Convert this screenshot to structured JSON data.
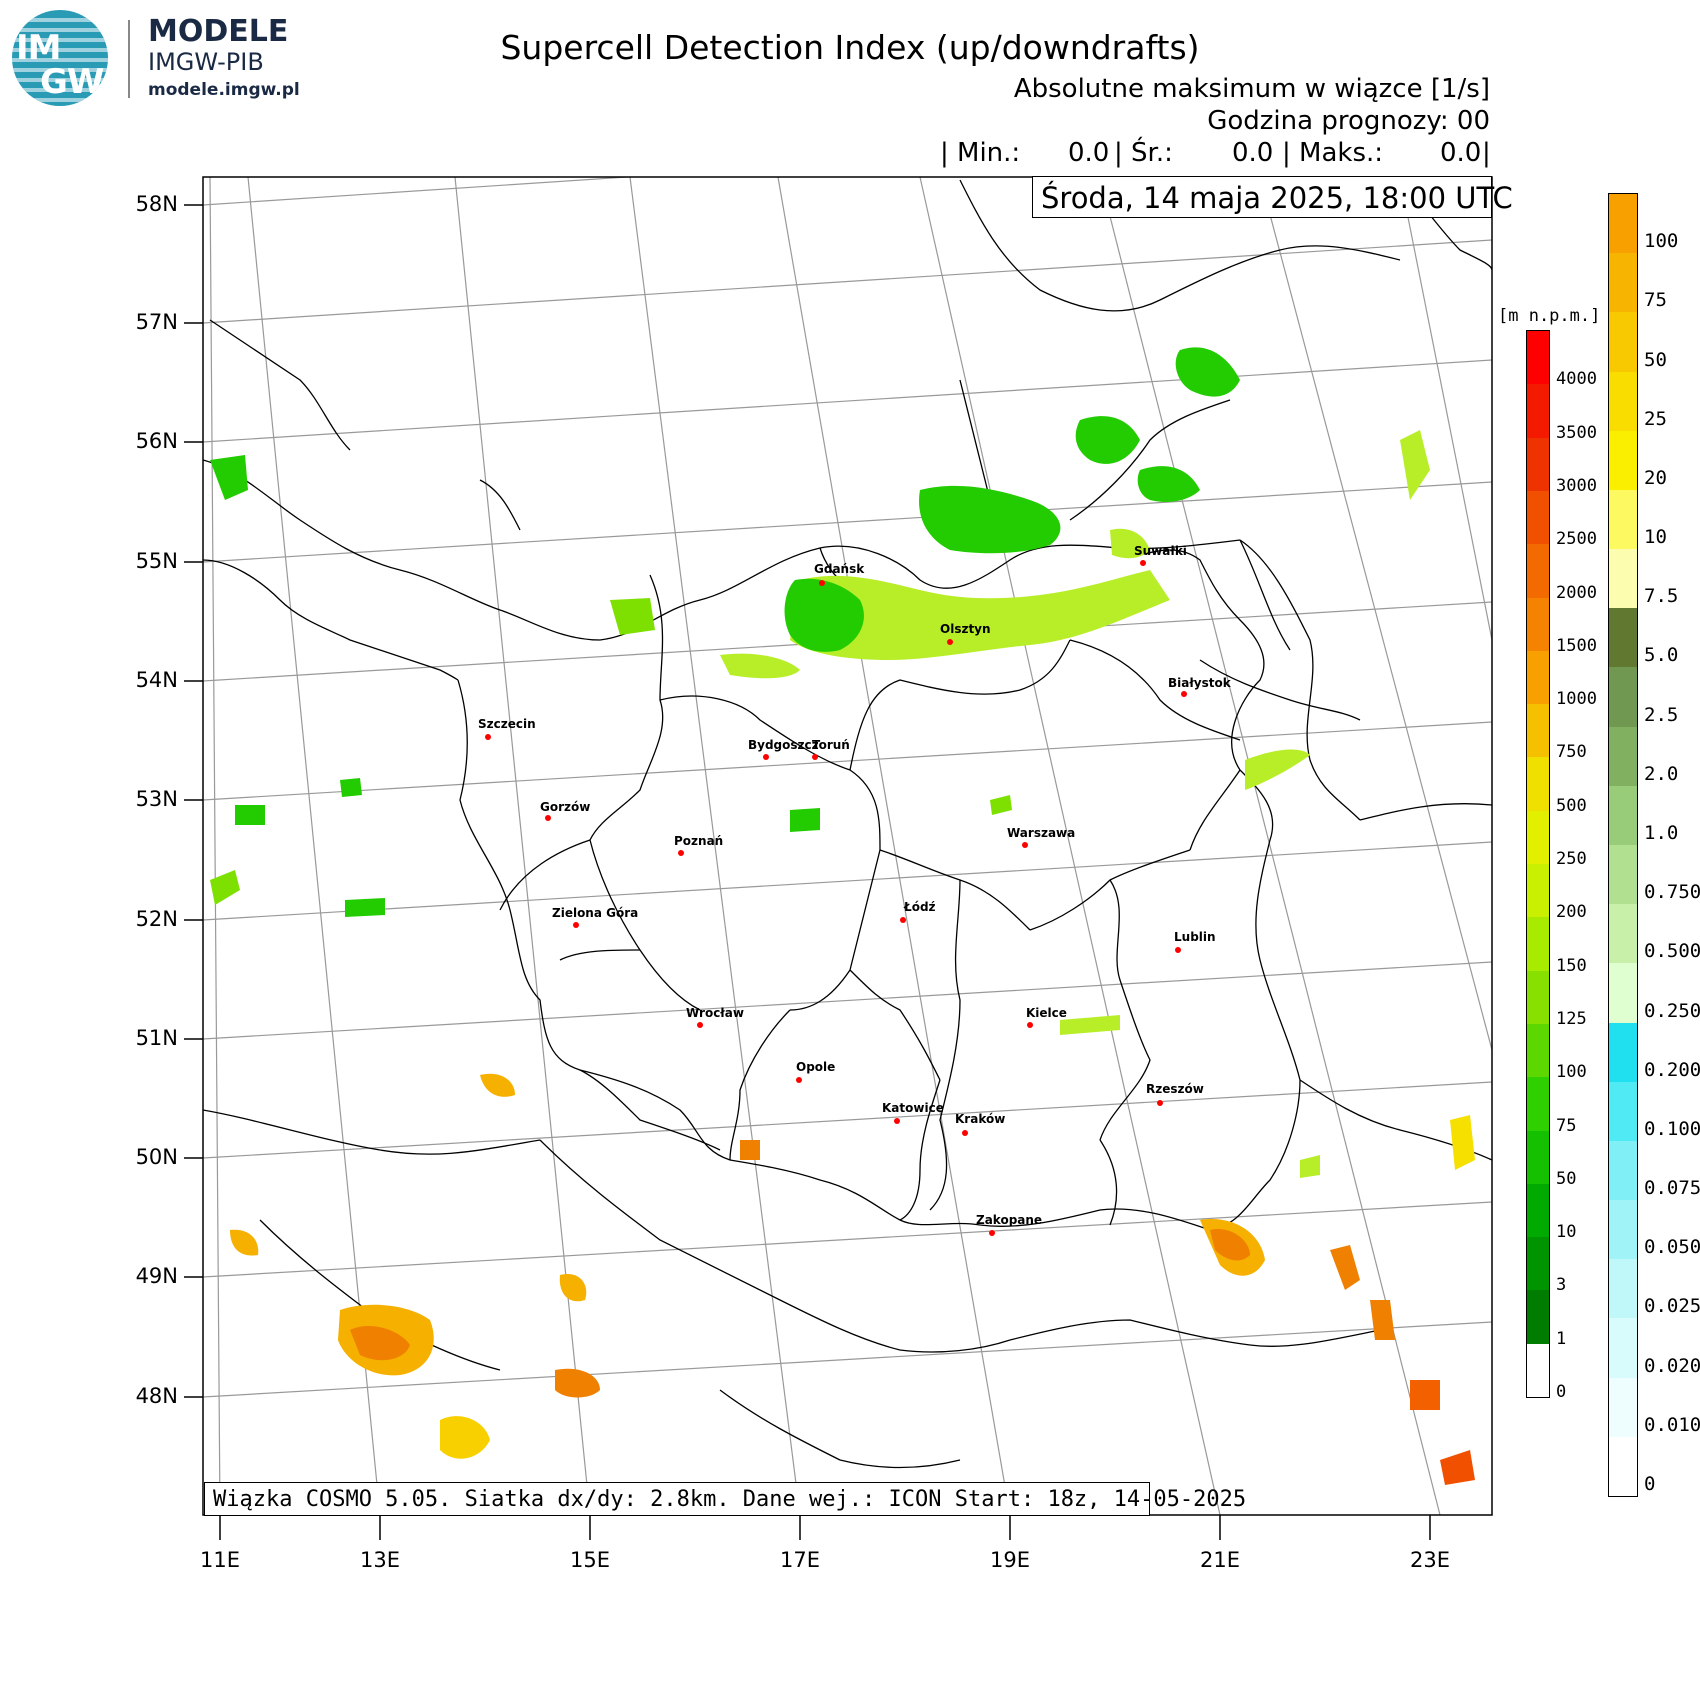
{
  "header": {
    "logo_line1": "IM",
    "logo_line2": "GW",
    "brand": "MODELE",
    "org": "IMGW-PIB",
    "site": "modele.imgw.pl",
    "title": "Supercell Detection Index (up/downdrafts)",
    "subtitle1": "Absolutne maksimum w wiązce [1/s]",
    "subtitle2": "Godzina prognozy: 00",
    "stats_min_label": "| Min.:",
    "stats_min_value": "0.0",
    "stats_avg_label": "| Śr.:",
    "stats_avg_value": "0.0",
    "stats_max_label": "| Maks.:",
    "stats_max_value": "0.0",
    "stats_end": "|",
    "date": "Środa, 14 maja 2025, 18:00 UTC"
  },
  "footer": {
    "text": "Wiązka COSMO 5.05. Siatka dx/dy: 2.8km. Dane wej.: ICON Start: 18z, 14-05-2025"
  },
  "axes": {
    "latitudes": [
      "58N",
      "57N",
      "56N",
      "55N",
      "54N",
      "53N",
      "52N",
      "51N",
      "50N",
      "49N",
      "48N"
    ],
    "longitudes": [
      "11E",
      "13E",
      "15E",
      "17E",
      "19E",
      "21E",
      "23E"
    ]
  },
  "cities": [
    {
      "name": "Gdańsk"
    },
    {
      "name": "Suwałki"
    },
    {
      "name": "Olsztyn"
    },
    {
      "name": "Białystok"
    },
    {
      "name": "Szczecin"
    },
    {
      "name": "Bydgoszcz"
    },
    {
      "name": "Toruń"
    },
    {
      "name": "Gorzów"
    },
    {
      "name": "Poznań"
    },
    {
      "name": "Warszawa"
    },
    {
      "name": "Łódź"
    },
    {
      "name": "Zielona Góra"
    },
    {
      "name": "Lublin"
    },
    {
      "name": "Wrocław"
    },
    {
      "name": "Kielce"
    },
    {
      "name": "Opole"
    },
    {
      "name": "Rzeszów"
    },
    {
      "name": "Katowice"
    },
    {
      "name": "Kraków"
    },
    {
      "name": "Zakopane"
    }
  ],
  "elevation_bar": {
    "unit": "[m n.p.m.]",
    "labels": [
      "4000",
      "3500",
      "3000",
      "2500",
      "2000",
      "1500",
      "1000",
      "750",
      "500",
      "250",
      "200",
      "150",
      "125",
      "100",
      "75",
      "50",
      "10",
      "3",
      "1",
      "0"
    ],
    "colors": [
      "#ff0000",
      "#f41a00",
      "#ee3300",
      "#f05000",
      "#f26a00",
      "#f58200",
      "#f7a000",
      "#f5c000",
      "#f0e000",
      "#e2f000",
      "#c8f000",
      "#a8ea00",
      "#88e000",
      "#5cd800",
      "#2ed000",
      "#14c000",
      "#00aa00",
      "#009400",
      "#007c00",
      "#ffffff"
    ]
  },
  "value_bar": {
    "labels": [
      "100",
      "75",
      "50",
      "25",
      "20",
      "10",
      "7.5",
      "5.0",
      "2.5",
      "2.0",
      "1.0",
      "0.750",
      "0.500",
      "0.250",
      "0.200",
      "0.100",
      "0.075",
      "0.050",
      "0.025",
      "0.020",
      "0.010",
      "0"
    ],
    "colors": [
      "#f7a000",
      "#f7b400",
      "#f8c800",
      "#f9dc00",
      "#fbef00",
      "#fcfa60",
      "#fdfdb0",
      "#607830",
      "#709850",
      "#80b060",
      "#98cc78",
      "#b0e090",
      "#c8f0a8",
      "#e0ffd0",
      "#20e0f0",
      "#50eaf4",
      "#80f0f6",
      "#a0f4f8",
      "#c0f8fa",
      "#d8fbfc",
      "#eefdfe",
      "#ffffff"
    ]
  }
}
